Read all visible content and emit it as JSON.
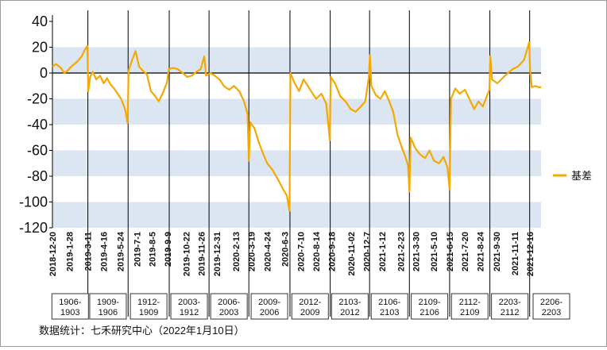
{
  "chart_data": {
    "type": "line",
    "title": "",
    "xlabel": "",
    "ylabel": "",
    "ylim": [
      -120,
      40
    ],
    "yticks": [
      40,
      20,
      0,
      -20,
      -40,
      -60,
      -80,
      -100,
      -120
    ],
    "series": [
      {
        "name": "基差",
        "color": "#F5A800",
        "points": [
          [
            "2018-12-20",
            5
          ],
          [
            "2018-12-28",
            7
          ],
          [
            "2019-01-08",
            4
          ],
          [
            "2019-01-16",
            0
          ],
          [
            "2019-01-24",
            2
          ],
          [
            "2019-02-01",
            5
          ],
          [
            "2019-02-15",
            9
          ],
          [
            "2019-02-25",
            13
          ],
          [
            "2019-03-04",
            18
          ],
          [
            "2019-03-10",
            21
          ],
          [
            "2019-03-12",
            -14
          ],
          [
            "2019-03-16",
            -3
          ],
          [
            "2019-03-22",
            1
          ],
          [
            "2019-03-30",
            -5
          ],
          [
            "2019-04-08",
            -2
          ],
          [
            "2019-04-16",
            -8
          ],
          [
            "2019-04-24",
            -4
          ],
          [
            "2019-05-02",
            -9
          ],
          [
            "2019-05-10",
            -12
          ],
          [
            "2019-05-18",
            -16
          ],
          [
            "2019-05-26",
            -20
          ],
          [
            "2019-06-04",
            -28
          ],
          [
            "2019-06-10",
            -39
          ],
          [
            "2019-06-12",
            2
          ],
          [
            "2019-06-20",
            10
          ],
          [
            "2019-06-28",
            17
          ],
          [
            "2019-07-06",
            5
          ],
          [
            "2019-07-14",
            2
          ],
          [
            "2019-07-24",
            -1
          ],
          [
            "2019-08-02",
            -14
          ],
          [
            "2019-08-12",
            -18
          ],
          [
            "2019-08-20",
            -22
          ],
          [
            "2019-08-30",
            -15
          ],
          [
            "2019-09-08",
            -7
          ],
          [
            "2019-09-12",
            3
          ],
          [
            "2019-09-22",
            4
          ],
          [
            "2019-10-02",
            3
          ],
          [
            "2019-10-14",
            0
          ],
          [
            "2019-10-24",
            -3
          ],
          [
            "2019-11-04",
            -2
          ],
          [
            "2019-11-14",
            1
          ],
          [
            "2019-11-24",
            3
          ],
          [
            "2019-12-02",
            13
          ],
          [
            "2019-12-06",
            -2
          ],
          [
            "2019-12-16",
            0
          ],
          [
            "2019-12-26",
            -2
          ],
          [
            "2020-01-06",
            -5
          ],
          [
            "2020-01-16",
            -10
          ],
          [
            "2020-01-28",
            -13
          ],
          [
            "2020-02-08",
            -10
          ],
          [
            "2020-02-20",
            -14
          ],
          [
            "2020-03-02",
            -22
          ],
          [
            "2020-03-10",
            -32
          ],
          [
            "2020-03-13",
            -68
          ],
          [
            "2020-03-16",
            -38
          ],
          [
            "2020-03-26",
            -43
          ],
          [
            "2020-04-04",
            -53
          ],
          [
            "2020-04-14",
            -62
          ],
          [
            "2020-04-24",
            -70
          ],
          [
            "2020-05-06",
            -75
          ],
          [
            "2020-05-18",
            -82
          ],
          [
            "2020-05-30",
            -90
          ],
          [
            "2020-06-08",
            -95
          ],
          [
            "2020-06-14",
            -107
          ],
          [
            "2020-06-16",
            0
          ],
          [
            "2020-06-26",
            -8
          ],
          [
            "2020-07-06",
            -14
          ],
          [
            "2020-07-16",
            -5
          ],
          [
            "2020-07-26",
            -10
          ],
          [
            "2020-08-04",
            -15
          ],
          [
            "2020-08-14",
            -20
          ],
          [
            "2020-08-26",
            -16
          ],
          [
            "2020-09-06",
            -24
          ],
          [
            "2020-09-14",
            -52
          ],
          [
            "2020-09-16",
            -3
          ],
          [
            "2020-09-26",
            -8
          ],
          [
            "2020-10-08",
            -18
          ],
          [
            "2020-10-20",
            -22
          ],
          [
            "2020-11-01",
            -28
          ],
          [
            "2020-11-12",
            -30
          ],
          [
            "2020-11-24",
            -26
          ],
          [
            "2020-12-04",
            -22
          ],
          [
            "2020-12-12",
            -4
          ],
          [
            "2020-12-15",
            14
          ],
          [
            "2020-12-18",
            -10
          ],
          [
            "2020-12-28",
            -17
          ],
          [
            "2021-01-08",
            -20
          ],
          [
            "2021-01-18",
            -14
          ],
          [
            "2021-01-28",
            -22
          ],
          [
            "2021-02-06",
            -30
          ],
          [
            "2021-02-16",
            -48
          ],
          [
            "2021-02-26",
            -58
          ],
          [
            "2021-03-06",
            -65
          ],
          [
            "2021-03-12",
            -72
          ],
          [
            "2021-03-15",
            -92
          ],
          [
            "2021-03-18",
            -50
          ],
          [
            "2021-03-28",
            -58
          ],
          [
            "2021-04-08",
            -63
          ],
          [
            "2021-04-20",
            -66
          ],
          [
            "2021-04-30",
            -60
          ],
          [
            "2021-05-10",
            -68
          ],
          [
            "2021-05-22",
            -70
          ],
          [
            "2021-06-01",
            -65
          ],
          [
            "2021-06-10",
            -73
          ],
          [
            "2021-06-15",
            -90
          ],
          [
            "2021-06-18",
            -20
          ],
          [
            "2021-06-28",
            -12
          ],
          [
            "2021-07-08",
            -16
          ],
          [
            "2021-07-20",
            -13
          ],
          [
            "2021-07-30",
            -20
          ],
          [
            "2021-08-10",
            -28
          ],
          [
            "2021-08-20",
            -22
          ],
          [
            "2021-08-30",
            -26
          ],
          [
            "2021-09-08",
            -18
          ],
          [
            "2021-09-14",
            -13
          ],
          [
            "2021-09-16",
            13
          ],
          [
            "2021-09-20",
            -5
          ],
          [
            "2021-10-02",
            -8
          ],
          [
            "2021-10-14",
            -4
          ],
          [
            "2021-10-26",
            0
          ],
          [
            "2021-11-06",
            3
          ],
          [
            "2021-11-18",
            5
          ],
          [
            "2021-12-02",
            10
          ],
          [
            "2021-12-10",
            19
          ],
          [
            "2021-12-14",
            24
          ],
          [
            "2021-12-16",
            2
          ],
          [
            "2021-12-20",
            -11
          ],
          [
            "2021-12-28",
            -10
          ],
          [
            "2022-01-05",
            -11
          ],
          [
            "2022-01-10",
            -11
          ]
        ]
      }
    ],
    "vlines": [
      "2019-03-11",
      "2019-06-11",
      "2019-09-13",
      "2019-12-13",
      "2020-03-13",
      "2020-06-15",
      "2020-09-15",
      "2020-12-14",
      "2021-03-15",
      "2021-06-15",
      "2021-09-15",
      "2021-12-15"
    ],
    "x_tick_labels": [
      [
        "2018-12-20",
        "2018-12-20"
      ],
      [
        "2019-01-28",
        "2019-1-28"
      ],
      [
        "2019-03-11",
        "2019-3-11"
      ],
      [
        "2019-04-16",
        "2019-4-16"
      ],
      [
        "2019-05-24",
        "2019-5-24"
      ],
      [
        "2019-07-01",
        "2019-7-1"
      ],
      [
        "2019-08-05",
        "2019-8-5"
      ],
      [
        "2019-09-09",
        "2019-9-9"
      ],
      [
        "2019-10-22",
        "2019-10-22"
      ],
      [
        "2019-11-26",
        "2019-11-26"
      ],
      [
        "2019-12-31",
        "2019-12-31"
      ],
      [
        "2020-02-13",
        "2020-2-13"
      ],
      [
        "2020-03-19",
        "2020-3-19"
      ],
      [
        "2020-04-24",
        "2020-4-24"
      ],
      [
        "2020-06-03",
        "2020-6-3"
      ],
      [
        "2020-07-10",
        "2020-7-10"
      ],
      [
        "2020-08-14",
        "2020-8-14"
      ],
      [
        "2020-09-18",
        "2020-9-18"
      ],
      [
        "2020-11-02",
        "2020-11-02"
      ],
      [
        "2020-12-07",
        "2020-12-7"
      ],
      [
        "2021-01-12",
        "2021-1-12"
      ],
      [
        "2021-02-23",
        "2021-2-23"
      ],
      [
        "2021-03-30",
        "2021-3-30"
      ],
      [
        "2021-05-10",
        "2021-5-10"
      ],
      [
        "2021-06-15",
        "2021-6-15"
      ],
      [
        "2021-07-20",
        "2021-7-20"
      ],
      [
        "2021-08-24",
        "2021-8-24"
      ],
      [
        "2021-09-30",
        "2021-9-30"
      ],
      [
        "2021-11-11",
        "2021-11-11"
      ],
      [
        "2021-12-16",
        "2021-12-16"
      ]
    ],
    "contract_boxes": [
      [
        "1906-",
        "1903"
      ],
      [
        "1909-",
        "1906"
      ],
      [
        "1912-",
        "1909"
      ],
      [
        "2003-",
        "1912"
      ],
      [
        "2006-",
        "2003"
      ],
      [
        "2009-",
        "2006"
      ],
      [
        "2012-",
        "2009"
      ],
      [
        "2103-",
        "2012"
      ],
      [
        "2106-",
        "2103"
      ],
      [
        "2109-",
        "2106"
      ],
      [
        "2112-",
        "2109"
      ],
      [
        "2203-",
        "2112"
      ],
      [
        "2206-",
        "2203"
      ]
    ],
    "grid": "horizontal bands",
    "legend_position": "right",
    "colors": {
      "line": "#F5A800",
      "band": "#DCE6F2",
      "vline": "#000000"
    }
  },
  "legend": {
    "label": "基差"
  },
  "source": "数据统计：七禾研究中心（2022年1月10日）"
}
